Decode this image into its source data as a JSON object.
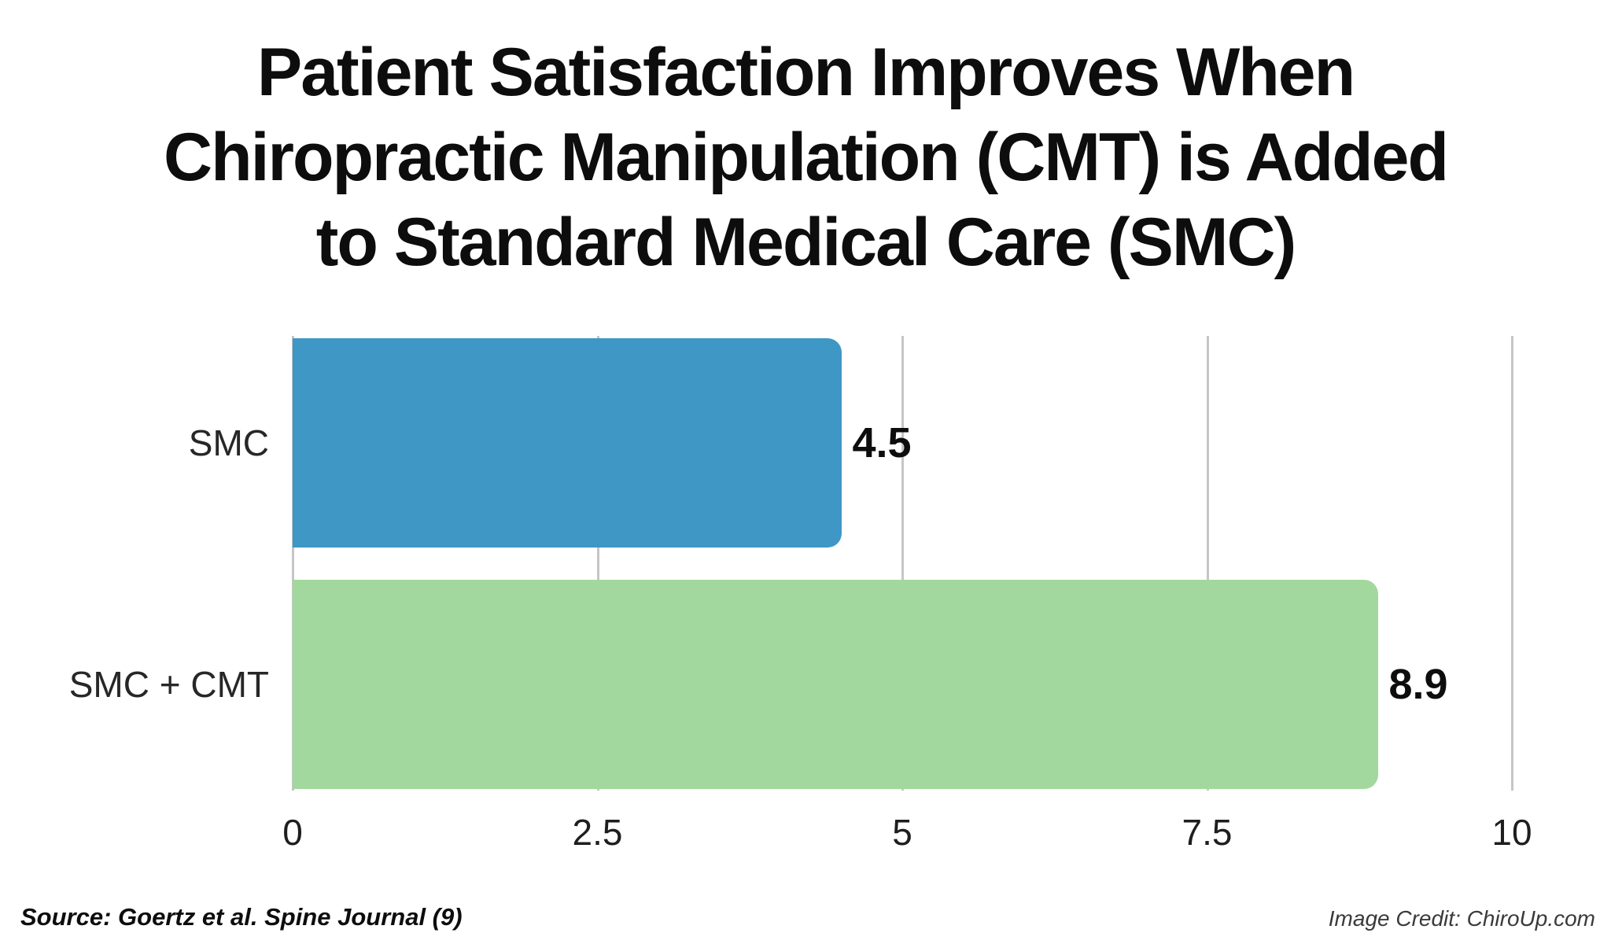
{
  "title_lines": [
    "Patient Satisfaction Improves When",
    "Chiropractic Manipulation (CMT) is Added",
    "to Standard Medical Care (SMC)"
  ],
  "chart_data": {
    "type": "bar",
    "orientation": "horizontal",
    "title": "Patient Satisfaction Improves When Chiropractic Manipulation (CMT) is Added to Standard Medical Care (SMC)",
    "categories": [
      "SMC",
      "SMC + CMT"
    ],
    "values": [
      4.5,
      8.9
    ],
    "value_labels": [
      "4.5",
      "8.9"
    ],
    "colors": [
      "#3E97C5",
      "#A2D89E"
    ],
    "xlim": [
      0,
      10
    ],
    "xticks": [
      0,
      2.5,
      5,
      7.5,
      10
    ],
    "xtick_labels": [
      "0",
      "2.5",
      "5",
      "7.5",
      "10"
    ],
    "grid": "vertical",
    "gridline_color": "#c6c6c6",
    "legend": "none"
  },
  "footer": {
    "source": "Source: Goertz et al. Spine Journal (9)",
    "credit": "Image Credit: ChiroUp.com"
  }
}
